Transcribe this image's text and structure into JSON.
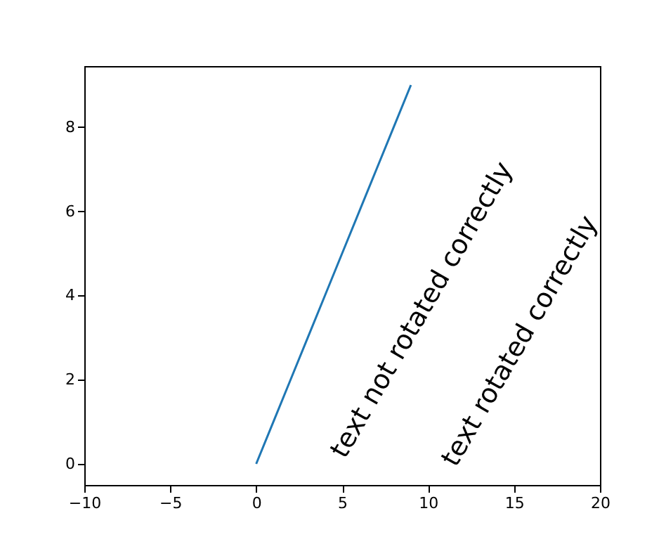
{
  "chart_data": {
    "type": "line",
    "x": [
      0,
      1,
      2,
      3,
      4,
      5,
      6,
      7,
      8,
      9
    ],
    "series": [
      {
        "color": "#1f77b4",
        "values": [
          0,
          1,
          2,
          3,
          4,
          5,
          6,
          7,
          8,
          9
        ]
      }
    ],
    "xlim": [
      -10,
      20
    ],
    "xticks": [
      -10,
      -5,
      0,
      5,
      10,
      15,
      20
    ],
    "ylim": [
      -0.5,
      9.45
    ],
    "yticks": [
      0,
      2,
      4,
      6,
      8
    ],
    "grid": false,
    "marker": "none",
    "line_style": "solid",
    "annotations": [
      "text not rotated correctly",
      "text rotated correctly"
    ]
  }
}
